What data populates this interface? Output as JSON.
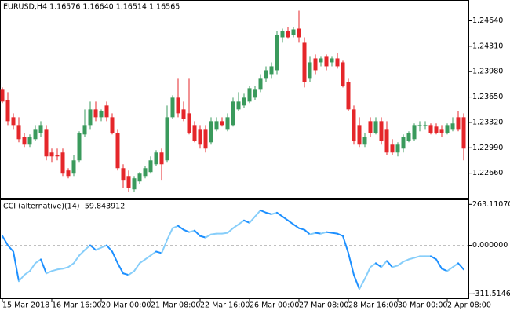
{
  "chart_data": [
    {
      "type": "candlestick",
      "title": "EURUSD,H4  1.16576 1.16640 1.16514 1.16565",
      "bull_color": "#3a9a5c",
      "bear_color": "#e5262a",
      "categories": [
        "15 Mar 2018",
        null,
        null,
        null,
        null,
        null,
        null,
        null,
        null,
        "16 Mar 16:00",
        null,
        null,
        null,
        null,
        null,
        null,
        null,
        null,
        "20 Mar 00:00",
        null,
        null,
        null,
        null,
        null,
        null,
        null,
        null,
        "21 Mar 08:00",
        null,
        null,
        null,
        null,
        null,
        null,
        null,
        null,
        "22 Mar 16:00",
        null,
        null,
        null,
        null,
        null,
        null,
        null,
        null,
        "26 Mar 00:00",
        null,
        null,
        null,
        null,
        null,
        null,
        null,
        null,
        "27 Mar 08:00",
        null,
        null,
        null,
        null,
        null,
        null,
        null,
        null,
        "28 Mar 16:00",
        null,
        null,
        null,
        null,
        null,
        null,
        null,
        null,
        "30 Mar 00:00",
        null,
        null,
        null,
        null,
        null,
        null,
        null,
        null,
        "2 Apr 08:00",
        null,
        null,
        null
      ],
      "open": [
        1.23744,
        1.23611,
        1.23387,
        1.23285,
        1.23133,
        1.23031,
        1.23102,
        1.23183,
        1.23234,
        1.22929,
        1.22899,
        1.22929,
        1.22695,
        1.22654,
        1.22827,
        1.23163,
        1.23285,
        1.23489,
        1.23387,
        1.2354,
        1.23387,
        1.23183,
        1.22725,
        1.22623,
        1.2245,
        1.22552,
        1.22623,
        1.22674,
        1.22776,
        1.22929,
        1.22827,
        1.23387,
        1.23642,
        1.23489,
        1.23438,
        1.23285,
        1.23234,
        1.23234,
        1.23061,
        1.23234,
        1.23336,
        1.23234,
        1.23285,
        1.23489,
        1.2354,
        1.23591,
        1.23642,
        1.23744,
        1.23897,
        1.23947,
        1.23998,
        1.24426,
        1.24508,
        1.24457,
        1.24538,
        1.24355,
        1.23897,
        1.24151,
        1.241,
        1.24182,
        1.241,
        1.24151,
        1.241,
        1.23846,
        1.23489,
        1.23285,
        1.23031,
        1.23336,
        1.23183,
        1.23336,
        1.23234,
        1.23031,
        1.22929,
        1.2298,
        1.23082,
        1.23102,
        1.23285,
        1.23285,
        1.23285,
        1.23265,
        1.23234,
        1.23183,
        1.23234,
        1.23387,
        1.23387
      ],
      "high": [
        1.23774,
        1.23713,
        1.23438,
        1.23387,
        1.23183,
        1.23163,
        1.23285,
        1.23336,
        1.23285,
        1.2298,
        1.2298,
        1.2298,
        1.22725,
        1.22899,
        1.23204,
        1.23489,
        1.23591,
        1.23591,
        1.23489,
        1.23591,
        1.23438,
        1.23234,
        1.22776,
        1.22695,
        1.22623,
        1.22674,
        1.22756,
        1.22878,
        1.2296,
        1.2298,
        1.2354,
        1.23672,
        1.23897,
        1.23591,
        1.23897,
        1.23336,
        1.23285,
        1.23285,
        1.23387,
        1.23387,
        1.23387,
        1.23438,
        1.23642,
        1.23713,
        1.23693,
        1.23795,
        1.23795,
        1.23947,
        1.24049,
        1.241,
        1.24508,
        1.24538,
        1.24559,
        1.24559,
        1.24772,
        1.24426,
        1.24182,
        1.24202,
        1.24182,
        1.24202,
        1.24182,
        1.24222,
        1.24121,
        1.23897,
        1.2354,
        1.23387,
        1.23183,
        1.23387,
        1.23387,
        1.23387,
        1.23336,
        1.23102,
        1.23061,
        1.23163,
        1.23204,
        1.23306,
        1.23336,
        1.23336,
        1.23306,
        1.23306,
        1.23285,
        1.23306,
        1.23387,
        1.23469,
        1.23438
      ],
      "low": [
        1.23571,
        1.23285,
        1.23234,
        1.23061,
        1.23,
        1.23,
        1.23082,
        1.23133,
        1.22827,
        1.22797,
        1.22827,
        1.22623,
        1.22593,
        1.22623,
        1.22797,
        1.23133,
        1.23234,
        1.23336,
        1.23336,
        1.23336,
        1.23163,
        1.22695,
        1.22471,
        1.2242,
        1.2242,
        1.22522,
        1.22593,
        1.22654,
        1.22756,
        1.22573,
        1.22797,
        1.23367,
        1.23387,
        1.23336,
        1.23163,
        1.23061,
        1.2298,
        1.22929,
        1.23031,
        1.23204,
        1.23265,
        1.23204,
        1.23265,
        1.23469,
        1.23509,
        1.23571,
        1.23611,
        1.23713,
        1.23846,
        1.23897,
        1.23947,
        1.24355,
        1.24406,
        1.24426,
        1.24355,
        1.23774,
        1.23846,
        1.23947,
        1.24049,
        1.23998,
        1.24049,
        1.24019,
        1.23774,
        1.23469,
        1.23031,
        1.23,
        1.23,
        1.23133,
        1.23163,
        1.23031,
        1.22899,
        1.22899,
        1.22878,
        1.22929,
        1.23061,
        1.23082,
        1.23204,
        1.23234,
        1.23163,
        1.23163,
        1.23133,
        1.23163,
        1.23204,
        1.23204,
        1.22827
      ],
      "close": [
        1.23591,
        1.23336,
        1.23285,
        1.23102,
        1.23031,
        1.23133,
        1.23234,
        1.23285,
        1.22878,
        1.22878,
        1.22878,
        1.22654,
        1.22623,
        1.22827,
        1.23183,
        1.23285,
        1.23489,
        1.23387,
        1.23469,
        1.23387,
        1.23183,
        1.22725,
        1.22573,
        1.22471,
        1.22593,
        1.22654,
        1.22725,
        1.22827,
        1.22929,
        1.22776,
        1.23387,
        1.23642,
        1.23438,
        1.23367,
        1.23183,
        1.23082,
        1.23031,
        1.2298,
        1.23336,
        1.23336,
        1.23285,
        1.23387,
        1.23591,
        1.23591,
        1.23642,
        1.23764,
        1.23744,
        1.23897,
        1.23998,
        1.24049,
        1.24457,
        1.24508,
        1.24426,
        1.24528,
        1.24426,
        1.23846,
        1.241,
        1.23998,
        1.24151,
        1.24049,
        1.24151,
        1.24049,
        1.23795,
        1.23489,
        1.23082,
        1.23031,
        1.23133,
        1.23183,
        1.23336,
        1.23082,
        1.22929,
        1.22929,
        1.23031,
        1.23133,
        1.23183,
        1.23285,
        1.23285,
        1.23285,
        1.23183,
        1.23183,
        1.23183,
        1.23285,
        1.23306,
        1.23234,
        1.2298
      ],
      "ylim": [
        1.2234,
        1.249
      ],
      "yticks": [
        {
          "value": 1.2464,
          "label": "1.24640"
        },
        {
          "value": 1.2431,
          "label": "1.24310"
        },
        {
          "value": 1.2398,
          "label": "1.23980"
        },
        {
          "value": 1.2365,
          "label": "1.23650"
        },
        {
          "value": 1.2332,
          "label": "1.23320"
        },
        {
          "value": 1.2299,
          "label": "1.22990"
        },
        {
          "value": 1.2266,
          "label": "1.22660"
        }
      ]
    },
    {
      "type": "line",
      "title": "CCI (alternative)(14) -59.843912",
      "up_color": "#87cefa",
      "down_color": "#1e90ff",
      "level_color": "#c0c0c0",
      "values": [
        60,
        0,
        -40,
        -230,
        -190,
        -165,
        -115,
        -90,
        -180,
        -165,
        -155,
        -150,
        -140,
        -115,
        -65,
        -30,
        0,
        -30,
        -15,
        0,
        -40,
        -115,
        -180,
        -190,
        -165,
        -115,
        -90,
        -65,
        -40,
        -50,
        35,
        110,
        125,
        100,
        85,
        95,
        60,
        50,
        70,
        75,
        75,
        80,
        110,
        135,
        160,
        145,
        185,
        225,
        210,
        200,
        210,
        185,
        160,
        135,
        110,
        100,
        70,
        80,
        75,
        85,
        80,
        75,
        60,
        -50,
        -190,
        -280,
        -215,
        -140,
        -115,
        -140,
        -100,
        -140,
        -130,
        -105,
        -90,
        -80,
        -70,
        -70,
        -70,
        -90,
        -150,
        -165,
        -140,
        -115,
        -155
      ],
      "ylim": [
        -340,
        290
      ],
      "yticks": [
        263.110704,
        {
          "value": 0,
          "label": "0.000000"
        },
        -311.5146
      ]
    }
  ]
}
